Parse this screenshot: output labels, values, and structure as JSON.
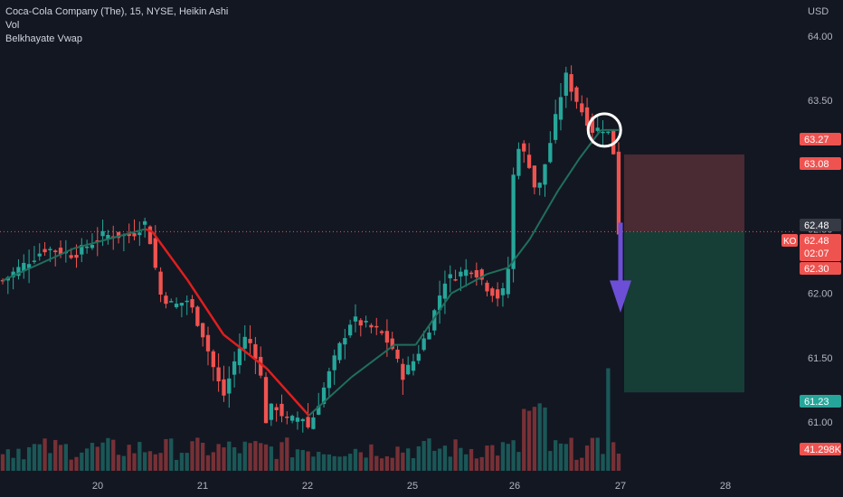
{
  "legend": {
    "line1": "Coca-Cola Company (The), 15, NYSE, Heikin Ashi",
    "line2": "Vol",
    "line3": "Belkhayate Vwap"
  },
  "axis": {
    "currency": "USD"
  },
  "colors": {
    "background": "#131722",
    "bull": "#26a69a",
    "bear": "#ef5350",
    "vwap_up": "#1f6f5c",
    "vwap_down": "#e01e1e",
    "stop_zone": "#4a2a33",
    "target_zone": "#173d37",
    "arrow": "#6c4fd6",
    "price_line": "#ef5350"
  },
  "chart_data": {
    "type": "candlestick",
    "symbol": "KO",
    "interval": "15",
    "exchange": "NYSE",
    "ylim": [
      60.7,
      64.2
    ],
    "y_ticks": [
      "64.00",
      "63.50",
      "63.00",
      "62.50",
      "62.00",
      "61.50",
      "61.00"
    ],
    "x_ticks": [
      "20",
      "21",
      "22",
      "25",
      "26",
      "27",
      "28"
    ],
    "price_labels": [
      {
        "text": "63.27",
        "value": 63.27,
        "color": "#ef5350"
      },
      {
        "text": "63.08",
        "value": 63.08,
        "color": "#ef5350"
      },
      {
        "text": "62.48",
        "value": 62.48,
        "color": "#363a45"
      },
      {
        "text": "62.48",
        "value": 62.48,
        "color": "#ef5350",
        "tag": "KO",
        "countdown": "02:07"
      },
      {
        "text": "62.30",
        "value": 62.3,
        "color": "#ef5350"
      },
      {
        "text": "61.23",
        "value": 61.23,
        "color": "#26a69a"
      },
      {
        "text": "41.298K",
        "value": null,
        "color": "#ef5350"
      }
    ],
    "position": {
      "stop_loss": 63.08,
      "entry": 62.48,
      "take_profit": 61.23
    },
    "close_path": [
      [
        0,
        62.1
      ],
      [
        6,
        62.35
      ],
      [
        10,
        62.3
      ],
      [
        14,
        62.45
      ],
      [
        18,
        62.45
      ],
      [
        20,
        62.55
      ],
      [
        21,
        62.35
      ],
      [
        22,
        62.0
      ],
      [
        24,
        61.9
      ],
      [
        26,
        61.95
      ],
      [
        28,
        61.7
      ],
      [
        30,
        61.35
      ],
      [
        31,
        61.2
      ],
      [
        33,
        61.55
      ],
      [
        34,
        61.65
      ],
      [
        35,
        61.6
      ],
      [
        36,
        61.45
      ],
      [
        37,
        61.0
      ],
      [
        38,
        61.15
      ],
      [
        40,
        61.0
      ],
      [
        42,
        61.05
      ],
      [
        43,
        60.95
      ],
      [
        45,
        61.25
      ],
      [
        47,
        61.55
      ],
      [
        49,
        61.8
      ],
      [
        51,
        61.75
      ],
      [
        53,
        61.7
      ],
      [
        55,
        61.55
      ],
      [
        56,
        61.35
      ],
      [
        58,
        61.5
      ],
      [
        60,
        61.75
      ],
      [
        62,
        62.1
      ],
      [
        64,
        62.15
      ],
      [
        66,
        62.2
      ],
      [
        68,
        62.05
      ],
      [
        70,
        61.95
      ],
      [
        71,
        62.2
      ],
      [
        72,
        63.2
      ],
      [
        74,
        63.0
      ],
      [
        75,
        62.75
      ],
      [
        77,
        63.2
      ],
      [
        79,
        63.7
      ],
      [
        81,
        63.45
      ],
      [
        83,
        63.25
      ],
      [
        84,
        63.3
      ],
      [
        85,
        63.25
      ],
      [
        86,
        63.05
      ],
      [
        86.5,
        62.48
      ]
    ],
    "vwap_path": [
      [
        0,
        62.1
      ],
      [
        10,
        62.35
      ],
      [
        20,
        62.5
      ],
      [
        21,
        62.48
      ],
      [
        26,
        62.1
      ],
      [
        31,
        61.68
      ],
      [
        37,
        61.42
      ],
      [
        43,
        61.05
      ],
      [
        49,
        61.35
      ],
      [
        55,
        61.6
      ],
      [
        58,
        61.6
      ],
      [
        63,
        62.0
      ],
      [
        68,
        62.15
      ],
      [
        71,
        62.2
      ],
      [
        74,
        62.42
      ],
      [
        78,
        62.8
      ],
      [
        81,
        63.05
      ],
      [
        84,
        63.27
      ],
      [
        86.5,
        63.27
      ]
    ],
    "volume_series": "41.298K"
  }
}
